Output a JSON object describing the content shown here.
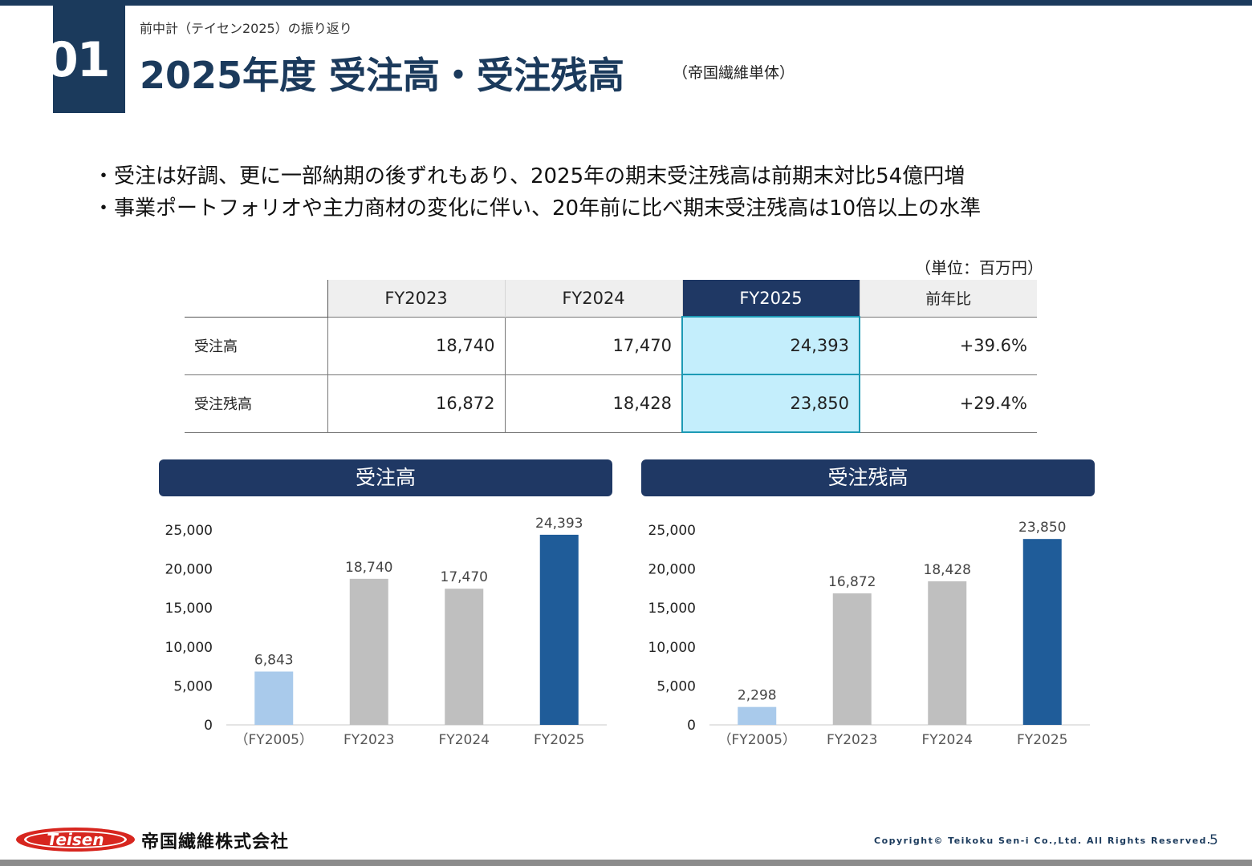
{
  "header": {
    "section_number": "01",
    "breadcrumb": "前中計（テイセン2025）の振り返り",
    "title": "2025年度 受注高・受注残高",
    "title_note": "（帝国繊維単体）"
  },
  "bullets": [
    "・受注は好調、更に一部納期の後ずれもあり、2025年の期末受注残高は前期末対比54億円増",
    "・事業ポートフォリオや主力商材の変化に伴い、20年前に比べ期末受注残高は10倍以上の水準"
  ],
  "table": {
    "unit_note": "（単位：百万円）",
    "headers": [
      "FY2023",
      "FY2024",
      "FY2025",
      "前年比"
    ],
    "rows": [
      {
        "label": "受注高",
        "values": [
          "18,740",
          "17,470",
          "24,393",
          "+39.6%"
        ]
      },
      {
        "label": "受注残高",
        "values": [
          "16,872",
          "18,428",
          "23,850",
          "+29.4%"
        ]
      }
    ]
  },
  "chart_data": [
    {
      "type": "bar",
      "title": "受注高",
      "categories": [
        "（FY2005）",
        "FY2023",
        "FY2024",
        "FY2025"
      ],
      "values": [
        6843,
        18740,
        17470,
        24393
      ],
      "value_labels": [
        "6,843",
        "18,740",
        "17,470",
        "24,393"
      ],
      "y_ticks": [
        "0",
        "5,000",
        "10,000",
        "15,000",
        "20,000",
        "25,000"
      ],
      "ylim": [
        0,
        25000
      ],
      "bar_colors": [
        "#a9caeb",
        "#bfbfbf",
        "#bfbfbf",
        "#1f5c99"
      ],
      "grid": false
    },
    {
      "type": "bar",
      "title": "受注残高",
      "categories": [
        "（FY2005）",
        "FY2023",
        "FY2024",
        "FY2025"
      ],
      "values": [
        2298,
        16872,
        18428,
        23850
      ],
      "value_labels": [
        "2,298",
        "16,872",
        "18,428",
        "23,850"
      ],
      "y_ticks": [
        "0",
        "5,000",
        "10,000",
        "15,000",
        "20,000",
        "25,000"
      ],
      "ylim": [
        0,
        25000
      ],
      "bar_colors": [
        "#a9caeb",
        "#bfbfbf",
        "#bfbfbf",
        "#1f5c99"
      ],
      "grid": false
    }
  ],
  "footer": {
    "logo_text": "Teisen",
    "company_name": "帝国繊維株式会社",
    "copyright": "Copyright© Teikoku Sen-i Co.,Ltd. All Rights Reserved.",
    "page_number": "5"
  },
  "colors": {
    "brand_navy": "#1b3a5c",
    "chart_header": "#1f3864",
    "highlight_cell": "#c4eefc",
    "highlight_border": "#1d9ab5",
    "logo_red": "#d7261f"
  }
}
